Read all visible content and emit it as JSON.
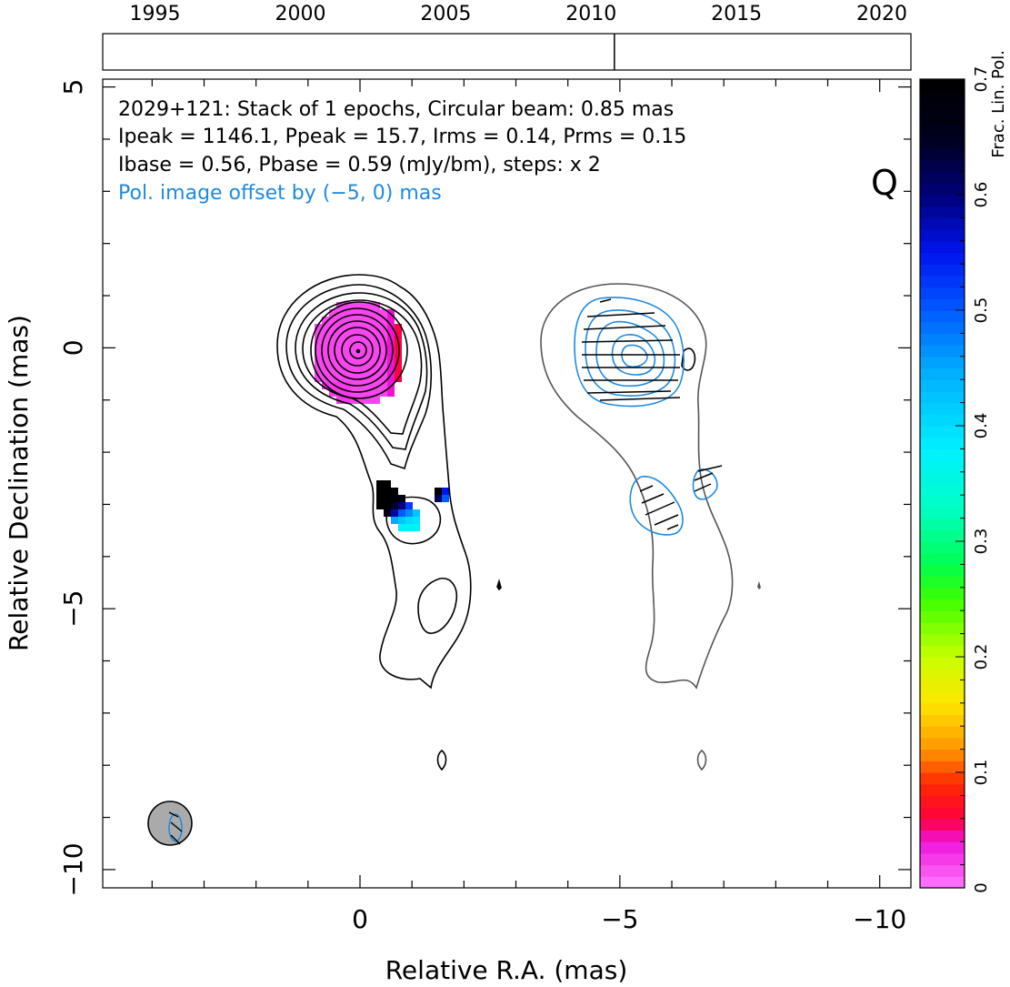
{
  "chart_data": {
    "type": "heatmap",
    "annotation_lines": [
      "2029+121: Stack of 1 epochs, Circular beam: 0.85 mas",
      "Ipeak = 1146.1, Ppeak = 15.7, Irms = 0.14, Prms = 0.15",
      "Ibase = 0.56, Pbase = 0.59 (mJy/bm), steps: x 2"
    ],
    "pol_offset_note": "Pol. image offset by (−5, 0) mas",
    "stokes_label": "Q",
    "xlabel": "Relative R.A. (mas)",
    "ylabel": "Relative Declination (mas)",
    "xlim": [
      4.95,
      -10.6
    ],
    "ylim": [
      -10.35,
      5.15
    ],
    "x_ticks": [
      {
        "value": 0,
        "label": "0"
      },
      {
        "value": -5,
        "label": "−5"
      },
      {
        "value": -10,
        "label": "−10"
      }
    ],
    "y_ticks": [
      {
        "value": 5,
        "label": "5"
      },
      {
        "value": 0,
        "label": "0"
      },
      {
        "value": -5,
        "label": "−5"
      },
      {
        "value": -10,
        "label": "−10"
      }
    ],
    "timeline": {
      "range": [
        1993.2,
        2021.0
      ],
      "ticks": [
        {
          "value": 1995,
          "label": "1995"
        },
        {
          "value": 2000,
          "label": "2000"
        },
        {
          "value": 2005,
          "label": "2005"
        },
        {
          "value": 2010,
          "label": "2010"
        },
        {
          "value": 2015,
          "label": "2015"
        },
        {
          "value": 2020,
          "label": "2020"
        }
      ],
      "epochs": [
        2010.8
      ]
    },
    "colorbar": {
      "label": "Frac. Lin. Pol.",
      "range": [
        0,
        0.7
      ],
      "ticks": [
        {
          "value": 0,
          "label": "0"
        },
        {
          "value": 0.1,
          "label": "0.1"
        },
        {
          "value": 0.2,
          "label": "0.2"
        },
        {
          "value": 0.3,
          "label": "0.3"
        },
        {
          "value": 0.4,
          "label": "0.4"
        },
        {
          "value": 0.5,
          "label": "0.5"
        },
        {
          "value": 0.6,
          "label": "0.6"
        },
        {
          "value": 0.7,
          "label": "0.7"
        }
      ]
    },
    "beam": {
      "x": 3.9,
      "y": -9.1,
      "diameter": 0.85
    },
    "colors": {
      "total_intensity_contour": "#000000",
      "outer_contour_offset": "#555555",
      "polarized_contour": "#1f8ae0",
      "beam_fill": "#aaaaaa"
    }
  }
}
